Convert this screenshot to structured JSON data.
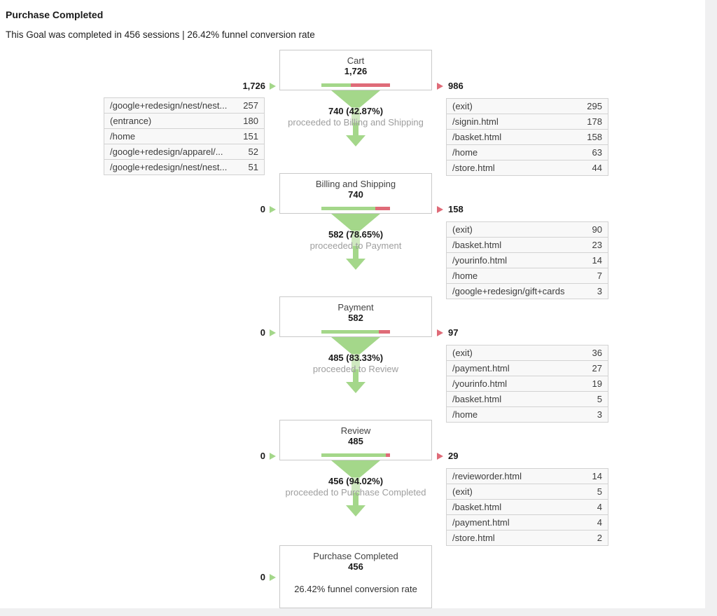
{
  "header": {
    "title": "Purchase Completed",
    "subtitle": "This Goal was completed in 456 sessions | 26.42% funnel conversion rate"
  },
  "colors": {
    "green": "#a4d78a",
    "green_light": "#cfe9c0",
    "red": "#df6b78"
  },
  "steps": [
    {
      "name": "Cart",
      "value": "1,726",
      "bar_green_pct": 42.87,
      "in_value": "1,726",
      "exit_value": "986",
      "proceed_value": "740 (42.87%)",
      "proceed_label": "proceeded to Billing and Shipping",
      "entrances": [
        {
          "label": "/google+redesign/nest/nest...",
          "value": "257"
        },
        {
          "label": "(entrance)",
          "value": "180"
        },
        {
          "label": "/home",
          "value": "151"
        },
        {
          "label": "/google+redesign/apparel/...",
          "value": "52"
        },
        {
          "label": "/google+redesign/nest/nest...",
          "value": "51"
        }
      ],
      "exits": [
        {
          "label": "(exit)",
          "value": "295"
        },
        {
          "label": "/signin.html",
          "value": "178"
        },
        {
          "label": "/basket.html",
          "value": "158"
        },
        {
          "label": "/home",
          "value": "63"
        },
        {
          "label": "/store.html",
          "value": "44"
        }
      ]
    },
    {
      "name": "Billing and Shipping",
      "value": "740",
      "bar_green_pct": 78.65,
      "in_value": "0",
      "exit_value": "158",
      "proceed_value": "582 (78.65%)",
      "proceed_label": "proceeded to Payment",
      "exits": [
        {
          "label": "(exit)",
          "value": "90"
        },
        {
          "label": "/basket.html",
          "value": "23"
        },
        {
          "label": "/yourinfo.html",
          "value": "14"
        },
        {
          "label": "/home",
          "value": "7"
        },
        {
          "label": "/google+redesign/gift+cards",
          "value": "3"
        }
      ]
    },
    {
      "name": "Payment",
      "value": "582",
      "bar_green_pct": 83.33,
      "in_value": "0",
      "exit_value": "97",
      "proceed_value": "485 (83.33%)",
      "proceed_label": "proceeded to Review",
      "exits": [
        {
          "label": "(exit)",
          "value": "36"
        },
        {
          "label": "/payment.html",
          "value": "27"
        },
        {
          "label": "/yourinfo.html",
          "value": "19"
        },
        {
          "label": "/basket.html",
          "value": "5"
        },
        {
          "label": "/home",
          "value": "3"
        }
      ]
    },
    {
      "name": "Review",
      "value": "485",
      "bar_green_pct": 94.02,
      "in_value": "0",
      "exit_value": "29",
      "proceed_value": "456 (94.02%)",
      "proceed_label": "proceeded to Purchase Completed",
      "exits": [
        {
          "label": "/revieworder.html",
          "value": "14"
        },
        {
          "label": "(exit)",
          "value": "5"
        },
        {
          "label": "/basket.html",
          "value": "4"
        },
        {
          "label": "/payment.html",
          "value": "4"
        },
        {
          "label": "/store.html",
          "value": "2"
        }
      ]
    },
    {
      "name": "Purchase Completed",
      "value": "456",
      "in_value": "0",
      "note": "26.42% funnel conversion rate"
    }
  ],
  "chart_data": {
    "type": "funnel",
    "title": "Purchase Completed",
    "subtitle": "This Goal was completed in 456 sessions | 26.42% funnel conversion rate",
    "total_conversions": 456,
    "funnel_conversion_rate_pct": 26.42,
    "steps": [
      {
        "name": "Cart",
        "sessions": 1726,
        "entered_shown": 1726,
        "proceeded": 740,
        "proceed_rate_pct": 42.87,
        "exited": 986,
        "entrance_sources": [
          [
            "/google+redesign/nest/nest...",
            257
          ],
          [
            "(entrance)",
            180
          ],
          [
            "/home",
            151
          ],
          [
            "/google+redesign/apparel/...",
            52
          ],
          [
            "/google+redesign/nest/nest...",
            51
          ]
        ],
        "exit_destinations": [
          [
            "(exit)",
            295
          ],
          [
            "/signin.html",
            178
          ],
          [
            "/basket.html",
            158
          ],
          [
            "/home",
            63
          ],
          [
            "/store.html",
            44
          ]
        ]
      },
      {
        "name": "Billing and Shipping",
        "sessions": 740,
        "entered_shown": 0,
        "proceeded": 582,
        "proceed_rate_pct": 78.65,
        "exited": 158,
        "exit_destinations": [
          [
            "(exit)",
            90
          ],
          [
            "/basket.html",
            23
          ],
          [
            "/yourinfo.html",
            14
          ],
          [
            "/home",
            7
          ],
          [
            "/google+redesign/gift+cards",
            3
          ]
        ]
      },
      {
        "name": "Payment",
        "sessions": 582,
        "entered_shown": 0,
        "proceeded": 485,
        "proceed_rate_pct": 83.33,
        "exited": 97,
        "exit_destinations": [
          [
            "(exit)",
            36
          ],
          [
            "/payment.html",
            27
          ],
          [
            "/yourinfo.html",
            19
          ],
          [
            "/basket.html",
            5
          ],
          [
            "/home",
            3
          ]
        ]
      },
      {
        "name": "Review",
        "sessions": 485,
        "entered_shown": 0,
        "proceeded": 456,
        "proceed_rate_pct": 94.02,
        "exited": 29,
        "exit_destinations": [
          [
            "/revieworder.html",
            14
          ],
          [
            "(exit)",
            5
          ],
          [
            "/basket.html",
            4
          ],
          [
            "/payment.html",
            4
          ],
          [
            "/store.html",
            2
          ]
        ]
      },
      {
        "name": "Purchase Completed",
        "sessions": 456,
        "entered_shown": 0,
        "note": "26.42% funnel conversion rate"
      }
    ]
  }
}
